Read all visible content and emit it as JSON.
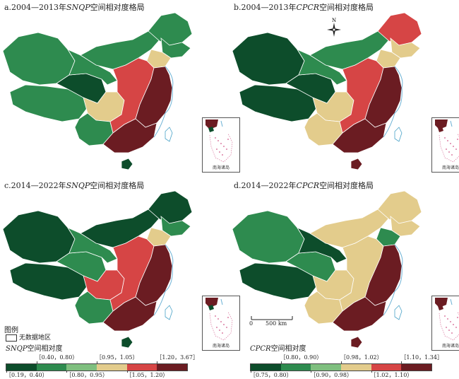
{
  "panels": [
    {
      "prefix": "a.2004—2013年",
      "var": "SNQP",
      "suffix": "空间相对度格局"
    },
    {
      "prefix": "b.2004—2013年",
      "var": "CPCR",
      "suffix": "空间相对度格局"
    },
    {
      "prefix": "c.2014—2022年",
      "var": "SNQP",
      "suffix": "空间相对度格局"
    },
    {
      "prefix": "d.2014—2022年",
      "var": "CPCR",
      "suffix": "空间相对度格局"
    }
  ],
  "inset_label": "南海诸岛",
  "compass_label": "N",
  "scale": {
    "zero": "0",
    "distance": "500 km"
  },
  "legend_left": {
    "heading": "图例",
    "no_data": "无数据地区",
    "var": "SNQP",
    "suffix": "空间相对度",
    "classes": [
      {
        "range": "［0.19，0.40）",
        "color": "#0d4d2b"
      },
      {
        "range": "［0.40，0.80）",
        "color": "#2e8b4f"
      },
      {
        "range": "［0.80，0.95）",
        "color": "#7fbf7f"
      },
      {
        "range": "［0.95，1.05）",
        "color": "#e3cc8c"
      },
      {
        "range": "［1.05，1.20）",
        "color": "#d64545"
      },
      {
        "range": "［1.20，3.67］",
        "color": "#6b1c22"
      }
    ]
  },
  "legend_right": {
    "var": "CPCR",
    "suffix": "空间相对度",
    "classes": [
      {
        "range": "［0.75，0.80）",
        "color": "#0d4d2b"
      },
      {
        "range": "［0.80，0.90）",
        "color": "#2e8b4f"
      },
      {
        "range": "［0.90，0.98）",
        "color": "#7fbf7f"
      },
      {
        "range": "［0.98，1.02）",
        "color": "#e3cc8c"
      },
      {
        "range": "［1.02，1.10）",
        "color": "#d64545"
      },
      {
        "range": "［1.10，1.34］",
        "color": "#6b1c22"
      }
    ]
  },
  "map_classes": {
    "a": {
      "xinjiang": "#2e8b4f",
      "tibet": "#2e8b4f",
      "qinghai": "#0d4d2b",
      "gansu": "#2e8b4f",
      "neimenggu": "#2e8b4f",
      "heilongjiang": "#2e8b4f",
      "jilin": "#2e8b4f",
      "liaoning": "#e3cc8c",
      "sichuan": "#e3cc8c",
      "yunnan": "#2e8b4f",
      "central": "#d64545",
      "east": "#6b1c22",
      "south": "#6b1c22",
      "hainan": "#0d4d2b"
    },
    "b": {
      "xinjiang": "#0d4d2b",
      "tibet": "#0d4d2b",
      "qinghai": "#0d4d2b",
      "gansu": "#2e8b4f",
      "neimenggu": "#2e8b4f",
      "heilongjiang": "#d64545",
      "jilin": "#e3cc8c",
      "liaoning": "#e3cc8c",
      "sichuan": "#e3cc8c",
      "yunnan": "#e3cc8c",
      "central": "#d64545",
      "east": "#6b1c22",
      "south": "#6b1c22",
      "hainan": "#6b1c22"
    },
    "c": {
      "xinjiang": "#0d4d2b",
      "tibet": "#0d4d2b",
      "qinghai": "#2e8b4f",
      "gansu": "#2e8b4f",
      "neimenggu": "#0d4d2b",
      "heilongjiang": "#0d4d2b",
      "jilin": "#2e8b4f",
      "liaoning": "#e3cc8c",
      "sichuan": "#d64545",
      "yunnan": "#2e8b4f",
      "central": "#d64545",
      "east": "#6b1c22",
      "south": "#6b1c22",
      "hainan": "#0d4d2b"
    },
    "d": {
      "xinjiang": "#2e8b4f",
      "tibet": "#0d4d2b",
      "qinghai": "#2e8b4f",
      "gansu": "#0d4d2b",
      "neimenggu": "#e3cc8c",
      "heilongjiang": "#e3cc8c",
      "jilin": "#e3cc8c",
      "liaoning": "#2e8b4f",
      "sichuan": "#e3cc8c",
      "yunnan": "#e3cc8c",
      "central": "#e3cc8c",
      "east": "#6b1c22",
      "south": "#6b1c22",
      "hainan": "#6b1c22"
    }
  }
}
